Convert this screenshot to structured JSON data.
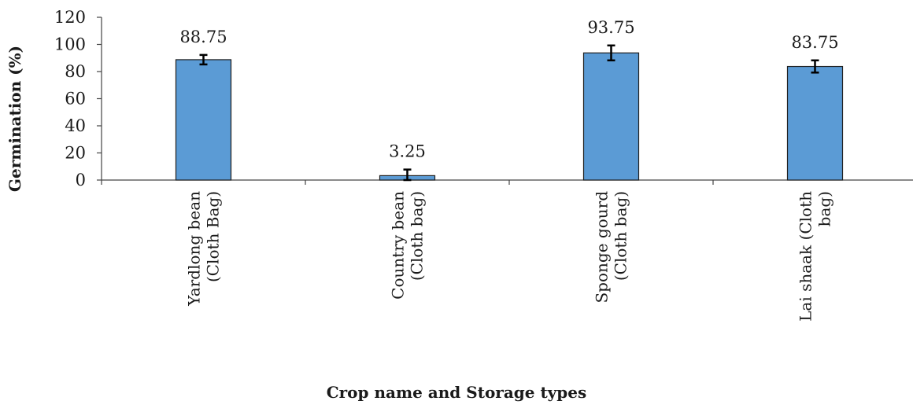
{
  "chart_data": {
    "type": "bar",
    "categories": [
      [
        "Yardlong bean",
        "(Cloth Bag)"
      ],
      [
        "Country bean",
        "(Cloth bag)"
      ],
      [
        "Sponge gourd",
        "(Cloth bag)"
      ],
      [
        "Lai shaak (Cloth",
        "bag)"
      ]
    ],
    "values": [
      88.75,
      3.25,
      93.75,
      83.75
    ],
    "data_labels": [
      "88.75",
      "3.25",
      "93.75",
      "83.75"
    ],
    "error": [
      3.5,
      4.5,
      5.5,
      4.5
    ],
    "xlabel": "Crop  name and Storage types",
    "ylabel": "Germination (%)",
    "ylim": [
      0,
      120
    ],
    "yticks": [
      0,
      20,
      40,
      60,
      80,
      100,
      120
    ],
    "grid": false,
    "legend": "none",
    "bar_color": "#5b9bd5",
    "bar_edge_color": "#1f1f1f"
  }
}
